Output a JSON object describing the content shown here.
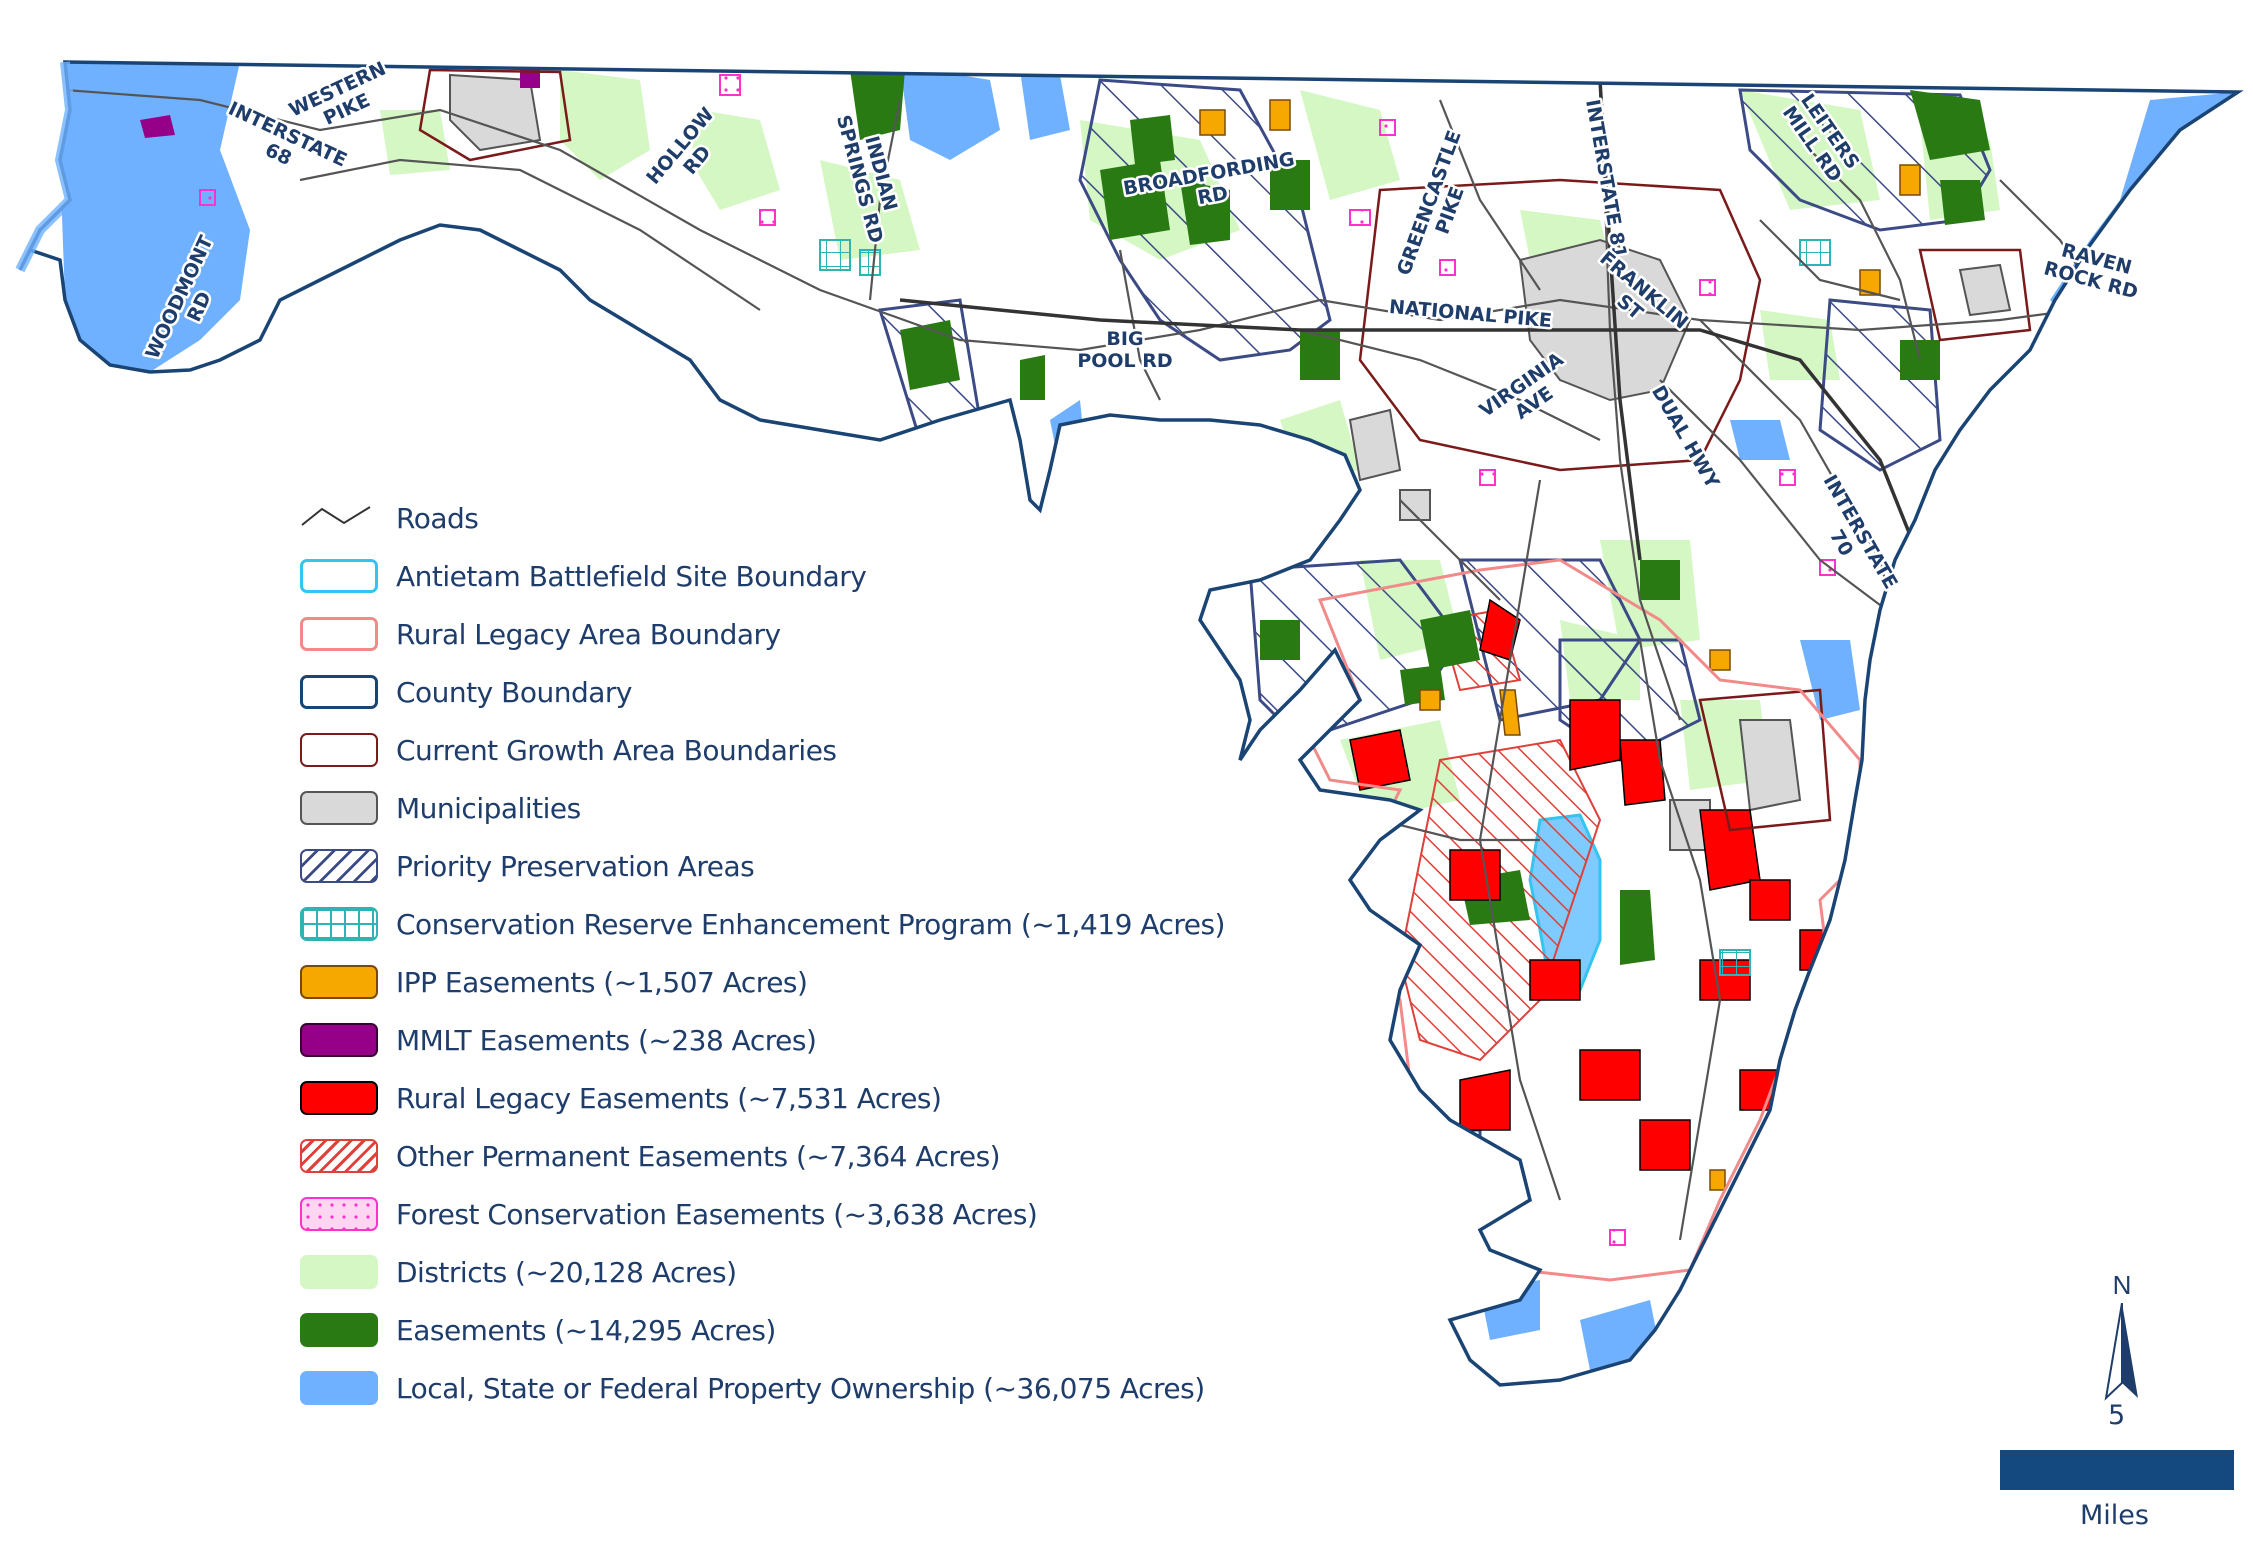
{
  "map": {
    "road_labels": [
      {
        "id": "western-pike",
        "lines": [
          "WESTERN",
          "PIKE"
        ]
      },
      {
        "id": "interstate-68",
        "lines": [
          "INTERSTATE",
          "68"
        ]
      },
      {
        "id": "woodmont-rd",
        "lines": [
          "WOODMONT",
          "RD"
        ]
      },
      {
        "id": "hollow-rd",
        "lines": [
          "HOLLOW",
          "RD"
        ]
      },
      {
        "id": "indian-springs-rd",
        "lines": [
          "INDIAN",
          "SPRINGS RD"
        ]
      },
      {
        "id": "broadfording-rd",
        "lines": [
          "BROADFORDING",
          "RD"
        ]
      },
      {
        "id": "greencastle-pike",
        "lines": [
          "GREENCASTLE",
          "PIKE"
        ]
      },
      {
        "id": "interstate-81",
        "lines": [
          "INTERSTATE 81"
        ]
      },
      {
        "id": "leiters-mill-rd",
        "lines": [
          "LEITERS",
          "MILL RD"
        ]
      },
      {
        "id": "raven-rock-rd",
        "lines": [
          "RAVEN",
          "ROCK RD"
        ]
      },
      {
        "id": "national-pike",
        "lines": [
          "NATIONAL PIKE"
        ]
      },
      {
        "id": "franklin-st",
        "lines": [
          "FRANKLIN",
          "ST"
        ]
      },
      {
        "id": "big-pool-rd",
        "lines": [
          "BIG",
          "POOL RD"
        ]
      },
      {
        "id": "virginia-ave",
        "lines": [
          "VIRGINIA",
          "AVE"
        ]
      },
      {
        "id": "dual-hwy",
        "lines": [
          "DUAL HWY"
        ]
      },
      {
        "id": "interstate-70",
        "lines": [
          "INTERSTATE",
          "70"
        ]
      }
    ],
    "colors": {
      "county_boundary": "#1a4474",
      "growth_area": "#7a1a1a",
      "municipality": "#d9d9d9",
      "priority": "#3c4a86",
      "crep": "#2fb3b3",
      "ipp": "#f6a800",
      "mmlt": "#960089",
      "rural_legacy_easement": "#ff0000",
      "other_permanent": "#e0403a",
      "forest": "#ff33cc",
      "districts": "#d4f7c4",
      "easements": "#2a7a14",
      "public": "#6fb1ff",
      "battlefield": "#33c5f0",
      "rural_legacy_area": "#f28a8a"
    }
  },
  "legend": {
    "items": [
      {
        "key": "roads",
        "label": "Roads"
      },
      {
        "key": "battlefield",
        "label": "Antietam Battlefield Site Boundary"
      },
      {
        "key": "rural-legacy-area",
        "label": "Rural Legacy Area Boundary"
      },
      {
        "key": "county",
        "label": "County Boundary"
      },
      {
        "key": "growth",
        "label": "Current Growth Area Boundaries"
      },
      {
        "key": "municipalities",
        "label": "Municipalities"
      },
      {
        "key": "priority",
        "label": "Priority Preservation Areas"
      },
      {
        "key": "crep",
        "label": "Conservation Reserve Enhancement Program (~1,419 Acres)"
      },
      {
        "key": "ipp",
        "label": "IPP Easements (~1,507 Acres)"
      },
      {
        "key": "mmlt",
        "label": "MMLT Easements (~238 Acres)"
      },
      {
        "key": "rural-legacy-easements",
        "label": "Rural Legacy Easements (~7,531 Acres)"
      },
      {
        "key": "other-permanent",
        "label": "Other Permanent Easements (~7,364 Acres)"
      },
      {
        "key": "forest",
        "label": "Forest Conservation Easements (~3,638 Acres)"
      },
      {
        "key": "districts",
        "label": "Districts (~20,128 Acres)"
      },
      {
        "key": "easements",
        "label": "Easements (~14,295 Acres)"
      },
      {
        "key": "public",
        "label": "Local, State or Federal Property Ownership (~36,075 Acres)"
      }
    ]
  },
  "north_arrow": {
    "letter": "N"
  },
  "scale": {
    "value": "5",
    "unit": "Miles"
  }
}
